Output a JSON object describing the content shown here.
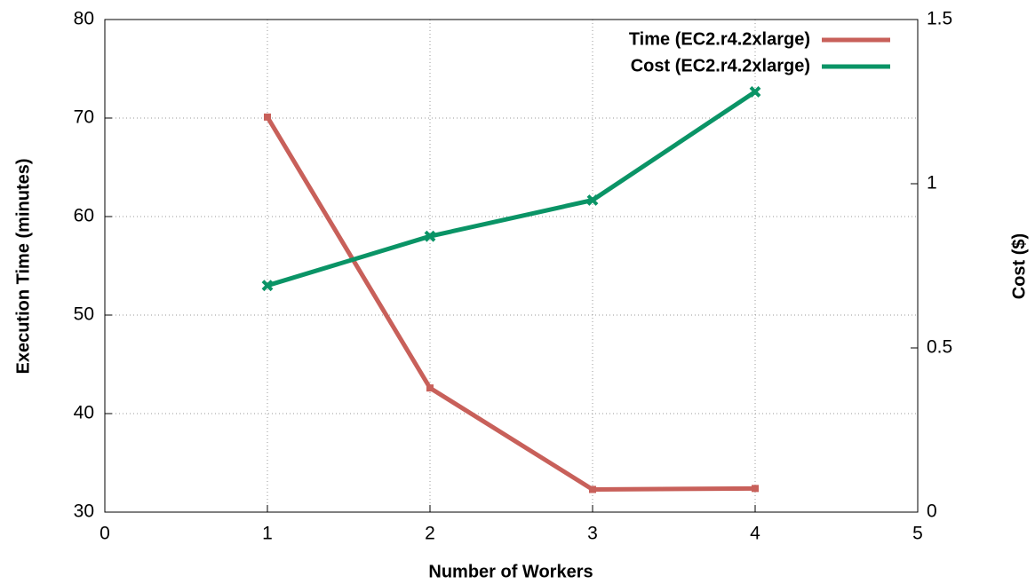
{
  "chart_data": {
    "type": "line",
    "x_label": "Number of Workers",
    "y_label": "Execution Time (minutes)",
    "y2_label": "Cost ($)",
    "x": [
      1,
      2,
      3,
      4
    ],
    "series": [
      {
        "name": "Time (EC2.r4.2xlarge)",
        "color": "#c8605a",
        "values": [
          70.1,
          42.6,
          32.3,
          32.4
        ]
      },
      {
        "name": "Cost (EC2.r4.2xlarge)",
        "color": "#0a9466",
        "axis": "y2",
        "values": [
          0.69,
          0.84,
          0.95,
          1.28
        ]
      }
    ],
    "xlim": [
      0,
      5
    ],
    "xticks": [
      0,
      1,
      2,
      3,
      4,
      5
    ],
    "ylim": [
      30,
      80
    ],
    "yticks": [
      30,
      40,
      50,
      60,
      70,
      80
    ],
    "y2lim": [
      0,
      1.5
    ],
    "y2ticks": [
      0,
      0.5,
      1,
      1.5
    ],
    "grid": true,
    "legend": "top-right"
  }
}
